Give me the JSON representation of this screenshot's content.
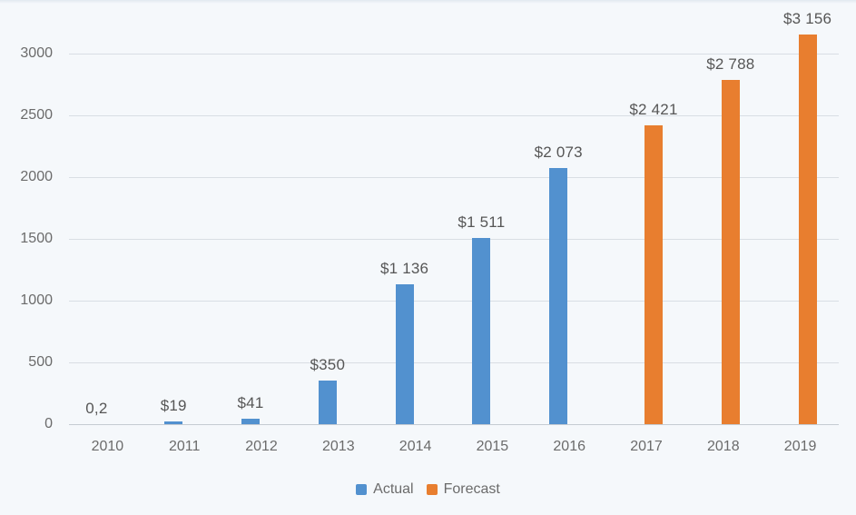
{
  "chart_data": {
    "type": "bar",
    "categories": [
      "2010",
      "2011",
      "2012",
      "2013",
      "2014",
      "2015",
      "2016",
      "2017",
      "2018",
      "2019"
    ],
    "series": [
      {
        "name": "Actual",
        "color": "#5291cf",
        "values": [
          0.2,
          19,
          41,
          350,
          1136,
          1511,
          2073,
          null,
          null,
          null
        ]
      },
      {
        "name": "Forecast",
        "color": "#e87e2f",
        "values": [
          null,
          null,
          null,
          null,
          null,
          null,
          null,
          2421,
          2788,
          3156
        ]
      }
    ],
    "data_labels": [
      "0,2",
      "$19",
      "$41",
      "$350",
      "$1 136",
      "$1 511",
      "$2 073",
      "$2 421",
      "$2 788",
      "$3 156"
    ],
    "y_ticks": [
      0,
      500,
      1000,
      1500,
      2000,
      2500,
      3000
    ],
    "ylim": [
      0,
      3000
    ],
    "grid": "horizontal-only",
    "legend_position": "bottom"
  },
  "colors": {
    "actual": "#5291cf",
    "forecast": "#e87e2f",
    "background": "#f5f8fb",
    "gridline": "#d9dee4",
    "axis_line": "#c5cbd2",
    "tick_text": "#6b6b6b",
    "label_text": "#565656"
  }
}
